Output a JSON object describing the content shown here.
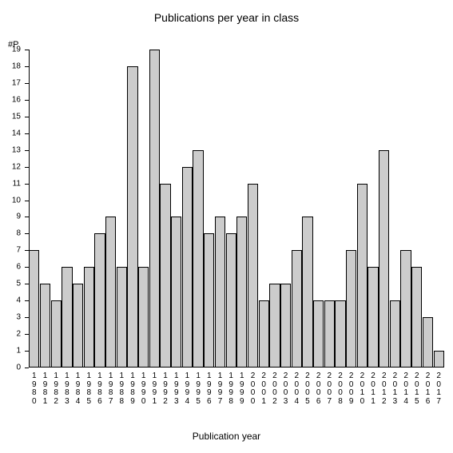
{
  "chart": {
    "type": "bar",
    "title": "Publications per year in class",
    "title_fontsize": 14,
    "ylabel": "#P",
    "xlabel": "Publication year",
    "label_fontsize": 12,
    "tick_fontsize": 10,
    "background_color": "#ffffff",
    "bar_fill": "#cccccc",
    "bar_border": "#000000",
    "axis_color": "#000000",
    "text_color": "#000000",
    "ylim": [
      0,
      19
    ],
    "ytick_step": 1,
    "bar_width": 0.97,
    "categories": [
      "1980",
      "1981",
      "1982",
      "1983",
      "1984",
      "1985",
      "1986",
      "1987",
      "1988",
      "1989",
      "1990",
      "1991",
      "1992",
      "1993",
      "1994",
      "1995",
      "1996",
      "1997",
      "1998",
      "1999",
      "2000",
      "2001",
      "2002",
      "2003",
      "2004",
      "2005",
      "2006",
      "2007",
      "2008",
      "2009",
      "2010",
      "2011",
      "2012",
      "2013",
      "2014",
      "2015",
      "2016",
      "2017"
    ],
    "values": [
      7,
      5,
      4,
      6,
      5,
      6,
      8,
      9,
      6,
      18,
      6,
      19,
      11,
      9,
      12,
      13,
      8,
      9,
      8,
      9,
      11,
      4,
      5,
      5,
      7,
      9,
      4,
      4,
      4,
      7,
      11,
      6,
      13,
      4,
      7,
      6,
      3,
      1
    ]
  }
}
